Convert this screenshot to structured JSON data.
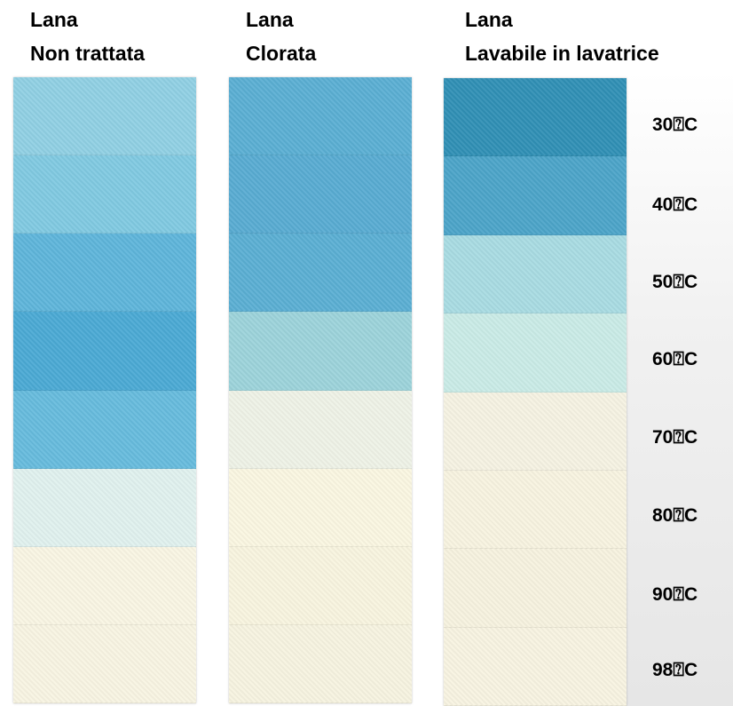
{
  "columns": [
    {
      "line1": "Lana",
      "line2": "Non trattata"
    },
    {
      "line1": "Lana",
      "line2": "Clorata"
    },
    {
      "line1": "Lana",
      "line2": "Lavabile in lavatrice"
    }
  ],
  "temperatures": [
    "30⍰C",
    "40⍰C",
    "50⍰C",
    "60⍰C",
    "70⍰C",
    "80⍰C",
    "90⍰C",
    "98⍰C"
  ]
}
